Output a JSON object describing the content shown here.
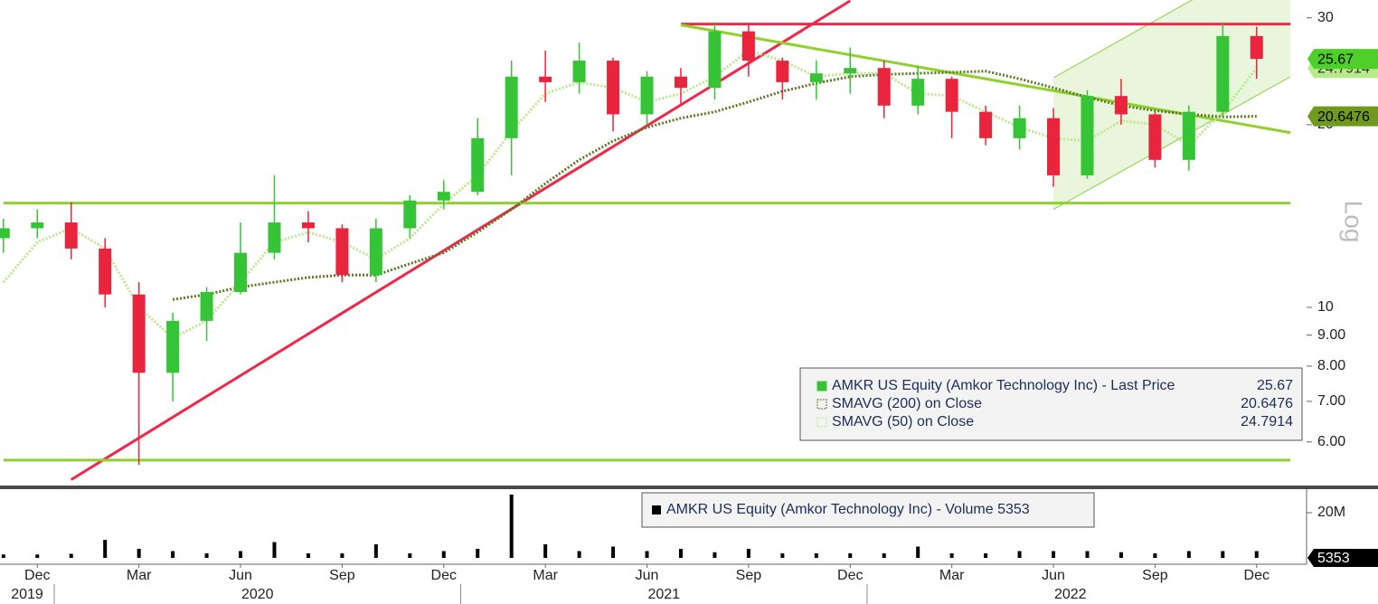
{
  "chart_data": [
    {
      "type": "candlestick",
      "name": "AMKR US Equity (Amkor Technology Inc) - Last Price",
      "x": [
        "2019-11",
        "2019-12",
        "2020-01",
        "2020-02",
        "2020-03",
        "2020-04",
        "2020-05",
        "2020-06",
        "2020-07",
        "2020-08",
        "2020-09",
        "2020-10",
        "2020-11",
        "2020-12",
        "2021-01",
        "2021-02",
        "2021-03",
        "2021-04",
        "2021-05",
        "2021-06",
        "2021-07",
        "2021-08",
        "2021-09",
        "2021-10",
        "2021-11",
        "2021-12",
        "2022-01",
        "2022-02",
        "2022-03",
        "2022-04",
        "2022-05",
        "2022-06",
        "2022-07",
        "2022-08",
        "2022-09",
        "2022-10",
        "2022-11",
        "2022-12"
      ],
      "open": [
        13,
        13.5,
        13.8,
        12.5,
        10.5,
        7.8,
        9.5,
        10.6,
        12.3,
        13.8,
        13.5,
        11.3,
        13.5,
        15,
        15.5,
        19,
        24,
        23.5,
        25.5,
        20.8,
        24,
        23,
        28.5,
        25.5,
        23.5,
        24.3,
        24.8,
        21.5,
        23.8,
        21,
        19,
        20.5,
        16.5,
        22.3,
        20.8,
        17.5,
        21,
        28
      ],
      "high": [
        14,
        14.5,
        14.9,
        13,
        11,
        9.8,
        10.8,
        13.8,
        16.5,
        14.4,
        13.7,
        14,
        15.3,
        16.2,
        20.5,
        25.5,
        26.5,
        27.3,
        25.8,
        24.5,
        24.8,
        29.5,
        29.4,
        25.8,
        25.5,
        26.8,
        25.5,
        25,
        24,
        21.5,
        21.5,
        21.3,
        22.8,
        23.8,
        21,
        21.5,
        29.5,
        29
      ],
      "low": [
        12.3,
        13,
        12,
        10,
        5.5,
        7,
        8.8,
        10.5,
        12,
        12.8,
        11,
        11,
        13,
        14.5,
        15.3,
        16.5,
        21.8,
        22.5,
        19.5,
        20,
        21.5,
        22,
        24,
        22,
        22,
        22.5,
        20.5,
        20.8,
        19,
        18.5,
        18.2,
        15.8,
        16.3,
        20,
        17,
        16.8,
        20.5,
        23.8
      ],
      "close": [
        13.5,
        13.8,
        12.5,
        10.5,
        7.8,
        9.5,
        10.6,
        12.3,
        13.8,
        13.5,
        11.3,
        13.5,
        15,
        15.5,
        19,
        24,
        23.5,
        25.5,
        20.8,
        24,
        23,
        28.5,
        25.5,
        23.5,
        24.3,
        24.8,
        21.5,
        23.8,
        21,
        19,
        20.5,
        16.5,
        22.3,
        20.8,
        17.5,
        21,
        28,
        25.67
      ],
      "color": "#35c435",
      "down_color": "#e8253d",
      "overlays": [
        {
          "name": "SMAVG (200)  on Close",
          "color": "#5a7a22",
          "values": [
            null,
            null,
            null,
            null,
            null,
            10.3,
            10.5,
            10.8,
            11.0,
            11.2,
            11.3,
            11.3,
            11.8,
            12.3,
            13.3,
            14.5,
            16.0,
            17.5,
            18.8,
            19.8,
            20.5,
            21.0,
            21.8,
            22.7,
            23.4,
            24.0,
            24.2,
            24.3,
            24.4,
            24.5,
            23.8,
            23.0,
            22.2,
            21.5,
            21.1,
            20.8,
            20.6,
            20.6476
          ]
        },
        {
          "name": "SMAVG (50)  on Close",
          "color": "#b9e98a",
          "values": [
            11.0,
            12.8,
            13.5,
            12.5,
            10.0,
            8.9,
            9.5,
            11.0,
            12.8,
            13.3,
            12.8,
            12.0,
            13.0,
            14.8,
            16.5,
            19.5,
            22.5,
            23.5,
            23.0,
            21.8,
            22.5,
            24.0,
            26.5,
            25.5,
            24.0,
            24.3,
            24.3,
            22.5,
            22.3,
            21.0,
            19.8,
            19.0,
            18.8,
            20.3,
            20.0,
            18.5,
            21.0,
            24.7914
          ]
        }
      ],
      "log_scale": true,
      "axis_label": "Log",
      "ylim": [
        5.12,
        32.1
      ],
      "yticks": [
        {
          "value": 6,
          "label": "6.00"
        },
        {
          "value": 7,
          "label": "7.00"
        },
        {
          "value": 8,
          "label": "8.00"
        },
        {
          "value": 9,
          "label": "9.00"
        },
        10,
        20,
        30
      ],
      "trendlines": [
        {
          "color": "#f0284a",
          "from": [
            "2021-07",
            29.3
          ],
          "to": [
            "2023-01",
            29.3
          ]
        },
        {
          "color": "#f0284a",
          "from": [
            "2020-01",
            5.2
          ],
          "to": [
            "2021-12",
            32
          ]
        },
        {
          "color": "#8fd12c",
          "from": [
            "2019-11",
            14.85
          ],
          "to": [
            "2023-01",
            14.85
          ]
        },
        {
          "color": "#8fd12c",
          "from": [
            "2019-11",
            5.6
          ],
          "to": [
            "2023-01",
            5.6
          ]
        },
        {
          "color": "#8fd12c",
          "from": [
            "2021-07",
            29.2
          ],
          "to": [
            "2023-01",
            19.4
          ]
        }
      ],
      "channel": {
        "color": "#9ad65a",
        "lower": [
          [
            "2022-06",
            14.5
          ],
          [
            "2023-01",
            24.0
          ]
        ],
        "upper": [
          [
            "2022-06",
            23.9
          ],
          [
            "2023-01",
            39.6
          ]
        ]
      }
    },
    {
      "type": "bar",
      "name": "AMKR US Equity (Amkor Technology Inc) - Volume",
      "x": [
        "2019-11",
        "2019-12",
        "2020-01",
        "2020-02",
        "2020-03",
        "2020-04",
        "2020-05",
        "2020-06",
        "2020-07",
        "2020-08",
        "2020-09",
        "2020-10",
        "2020-11",
        "2020-12",
        "2021-01",
        "2021-02",
        "2021-03",
        "2021-04",
        "2021-05",
        "2021-06",
        "2021-07",
        "2021-08",
        "2021-09",
        "2021-10",
        "2021-11",
        "2021-12",
        "2022-01",
        "2022-02",
        "2022-03",
        "2022-04",
        "2022-05",
        "2022-06",
        "2022-07",
        "2022-08",
        "2022-09",
        "2022-10",
        "2022-11",
        "2022-12"
      ],
      "values": [
        1500000,
        1500000,
        1800000,
        8000000,
        4000000,
        3000000,
        2000000,
        3000000,
        7000000,
        2000000,
        2000000,
        6000000,
        2000000,
        3000000,
        4000000,
        28000000,
        6000000,
        3000000,
        5000000,
        3000000,
        4000000,
        2500000,
        4000000,
        2000000,
        2000000,
        2000000,
        2000000,
        5000000,
        2000000,
        2000000,
        3000000,
        3000000,
        3000000,
        2500000,
        2000000,
        3000000,
        3000000,
        3000000
      ],
      "last_value": 5353,
      "color": "#000000",
      "ylim": [
        0,
        30800000
      ],
      "yticks": [
        {
          "value": 20000000,
          "label": "20M"
        }
      ],
      "xticks": [
        {
          "value": "2019-12",
          "label": "Dec"
        },
        {
          "value": "2020-03",
          "label": "Mar"
        },
        {
          "value": "2020-06",
          "label": "Jun"
        },
        {
          "value": "2020-09",
          "label": "Sep"
        },
        {
          "value": "2020-12",
          "label": "Dec"
        },
        {
          "value": "2021-03",
          "label": "Mar"
        },
        {
          "value": "2021-06",
          "label": "Jun"
        },
        {
          "value": "2021-09",
          "label": "Sep"
        },
        {
          "value": "2021-12",
          "label": "Dec"
        },
        {
          "value": "2022-03",
          "label": "Mar"
        },
        {
          "value": "2022-06",
          "label": "Jun"
        },
        {
          "value": "2022-09",
          "label": "Sep"
        },
        {
          "value": "2022-12",
          "label": "Dec"
        }
      ],
      "year_labels": [
        "2019",
        "2020",
        "2021",
        "2022"
      ]
    }
  ]
}
